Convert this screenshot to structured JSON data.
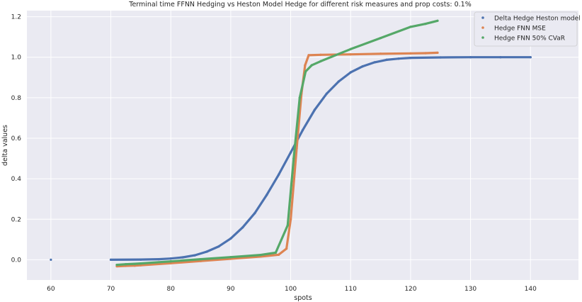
{
  "chart_data": {
    "type": "scatter",
    "title": "Terminal time FFNN Hedging vs Heston Model Hedge for different risk measures and prop costs: 0.1%",
    "xlabel": "spots",
    "ylabel": "delta values",
    "xlim": [
      56,
      148
    ],
    "ylim": [
      -0.1,
      1.23
    ],
    "xticks": [
      60,
      70,
      80,
      90,
      100,
      110,
      120,
      130,
      140
    ],
    "yticks": [
      0.0,
      0.2,
      0.4,
      0.6,
      0.8,
      1.0,
      1.2
    ],
    "grid": true,
    "legend_position": "top-right",
    "series": [
      {
        "name": "Delta Hedge Heston model",
        "color": "#4c72b0",
        "x": [
          60,
          70,
          75,
          78,
          80,
          82,
          84,
          86,
          88,
          90,
          92,
          94,
          96,
          98,
          100,
          102,
          104,
          106,
          108,
          110,
          112,
          114,
          116,
          118,
          120,
          125,
          130,
          135,
          140
        ],
        "y": [
          0.0,
          0.0,
          0.001,
          0.003,
          0.006,
          0.012,
          0.022,
          0.04,
          0.066,
          0.105,
          0.16,
          0.23,
          0.32,
          0.42,
          0.53,
          0.64,
          0.74,
          0.82,
          0.88,
          0.925,
          0.955,
          0.975,
          0.987,
          0.993,
          0.997,
          0.999,
          1.0,
          1.0,
          1.0
        ]
      },
      {
        "name": "Hedge FNN MSE",
        "color": "#dd8452",
        "x": [
          71.0,
          72.5,
          74.0,
          75.0,
          80.0,
          85.0,
          90.0,
          95.0,
          98.0,
          99.3,
          100.0,
          101.0,
          101.8,
          102.4,
          103.0,
          105.0,
          110.0,
          115.0,
          120.0,
          122.5,
          124.5
        ],
        "y": [
          -0.032,
          -0.03,
          -0.029,
          -0.027,
          -0.017,
          -0.006,
          0.005,
          0.016,
          0.025,
          0.055,
          0.2,
          0.55,
          0.82,
          0.96,
          1.01,
          1.012,
          1.014,
          1.017,
          1.019,
          1.02,
          1.022
        ]
      },
      {
        "name": "Hedge FNN 50% CVaR",
        "color": "#55a868",
        "x": [
          71.0,
          72.5,
          74.0,
          75.0,
          80.0,
          85.0,
          90.0,
          95.0,
          97.5,
          99.5,
          100.5,
          101.5,
          102.5,
          103.5,
          105.0,
          110.0,
          115.0,
          120.0,
          122.5,
          124.5
        ],
        "y": [
          -0.025,
          -0.022,
          -0.02,
          -0.018,
          -0.008,
          0.003,
          0.013,
          0.024,
          0.035,
          0.17,
          0.5,
          0.8,
          0.93,
          0.96,
          0.98,
          1.04,
          1.095,
          1.15,
          1.165,
          1.18
        ]
      }
    ]
  }
}
